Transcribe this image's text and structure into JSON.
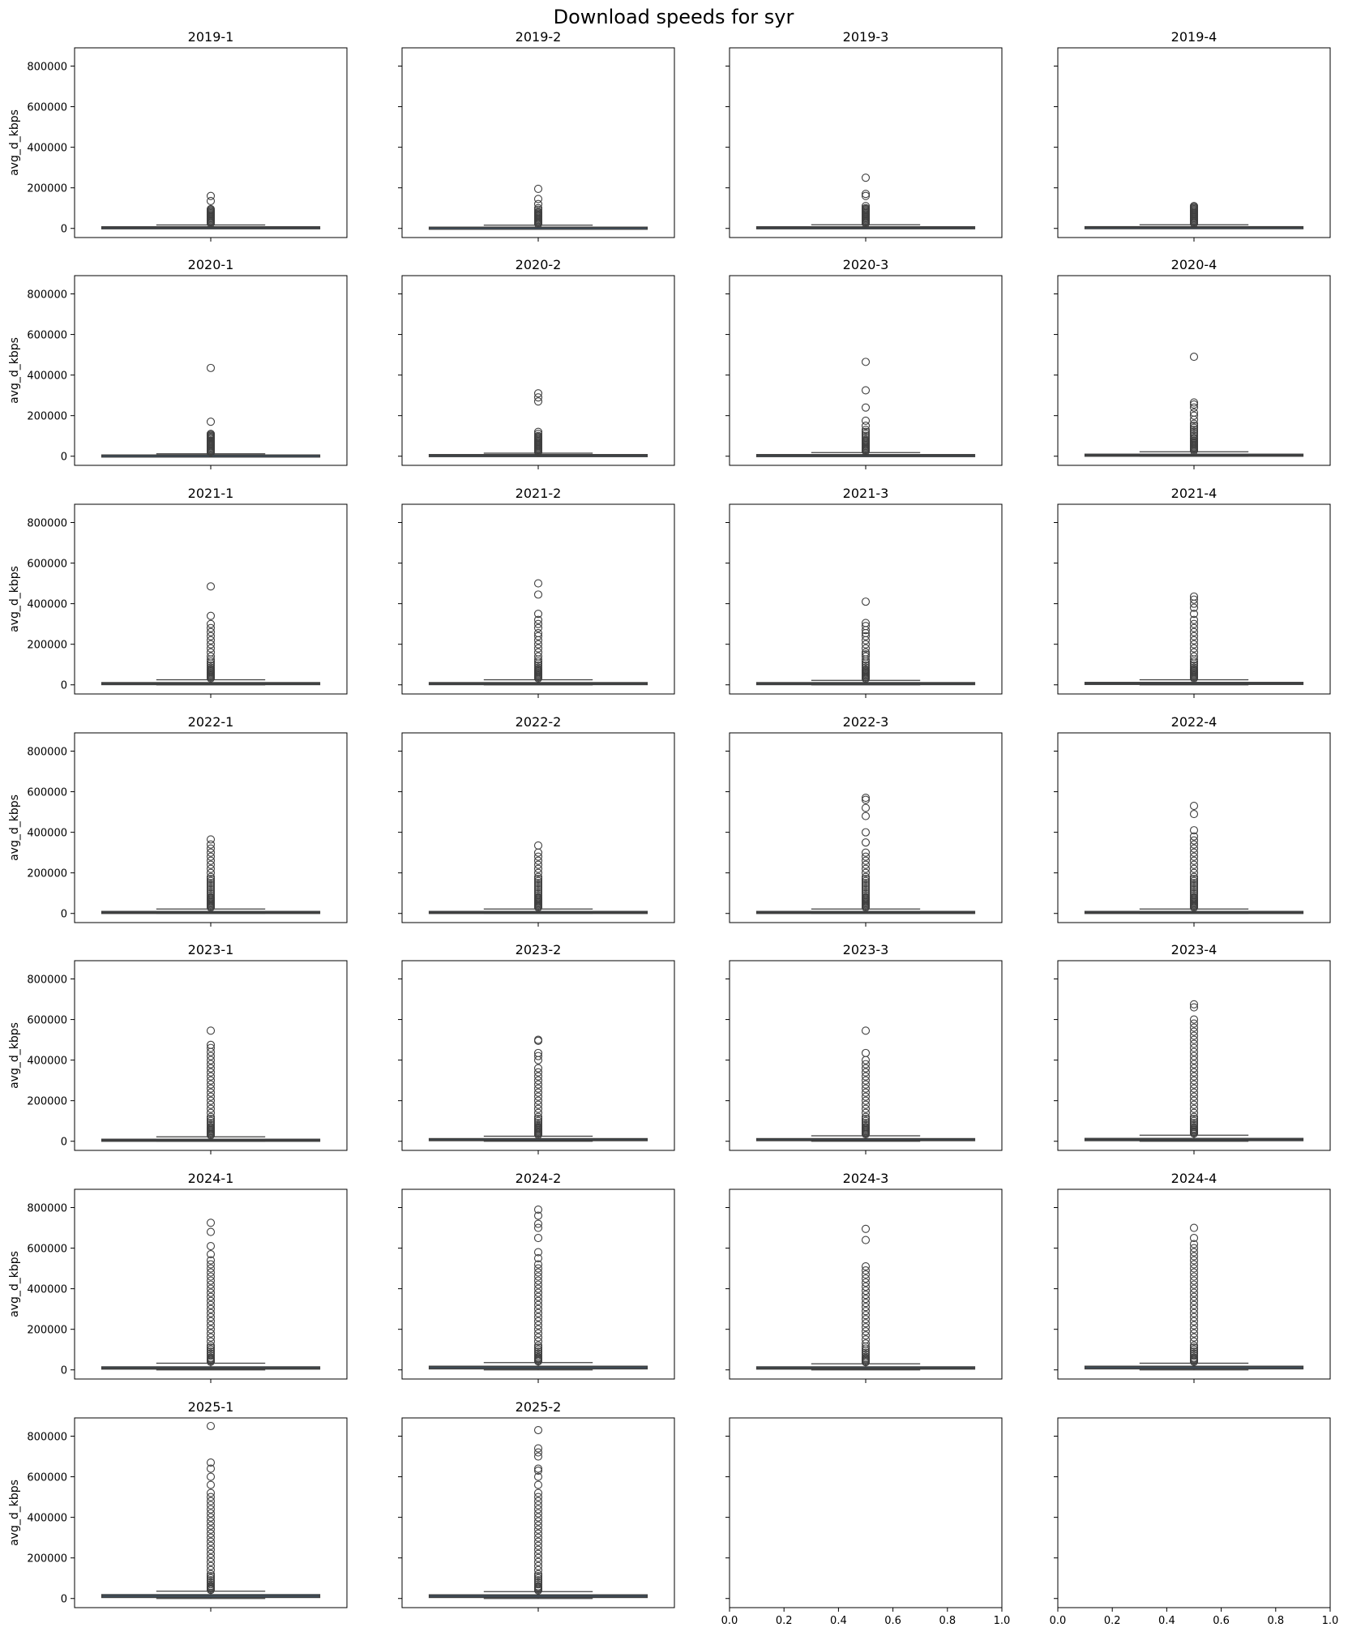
{
  "figure": {
    "title": "Download speeds for syr"
  },
  "chart_data": {
    "type": "box",
    "layout": {
      "rows": 7,
      "cols": 4
    },
    "title": "Download speeds for syr",
    "ylabel": "avg_d_kbps",
    "ylim": [
      -45000,
      890000
    ],
    "yticks": [
      0,
      200000,
      400000,
      600000,
      800000
    ],
    "grid": false,
    "box_color": "#3d6f98",
    "edge_color": "#3f3f3f",
    "panels": [
      {
        "title": "2019-1",
        "stats": {
          "min": 0,
          "q1": 1000,
          "median": 4000,
          "q3": 8000,
          "max": 17000
        },
        "outliers": [
          25000,
          30000,
          35000,
          40000,
          45000,
          50000,
          55000,
          60000,
          65000,
          70000,
          75000,
          80000,
          85000,
          90000,
          95000,
          135000,
          160000
        ]
      },
      {
        "title": "2019-2",
        "stats": {
          "min": 0,
          "q1": 800,
          "median": 3000,
          "q3": 6000,
          "max": 16000
        },
        "outliers": [
          22000,
          27000,
          32000,
          37000,
          42000,
          47000,
          52000,
          57000,
          62000,
          67000,
          72000,
          77000,
          82000,
          92000,
          100000,
          120000,
          145000,
          195000
        ]
      },
      {
        "title": "2019-3",
        "stats": {
          "min": 0,
          "q1": 1000,
          "median": 4000,
          "q3": 8000,
          "max": 18000
        },
        "outliers": [
          25000,
          30000,
          35000,
          40000,
          45000,
          50000,
          55000,
          60000,
          65000,
          70000,
          75000,
          80000,
          85000,
          90000,
          95000,
          100000,
          110000,
          160000,
          170000,
          250000
        ]
      },
      {
        "title": "2019-4",
        "stats": {
          "min": 0,
          "q1": 1500,
          "median": 4500,
          "q3": 8500,
          "max": 18000
        },
        "outliers": [
          25000,
          30000,
          35000,
          40000,
          45000,
          50000,
          55000,
          60000,
          65000,
          70000,
          75000,
          80000,
          85000,
          90000,
          95000,
          100000,
          105000,
          110000
        ]
      },
      {
        "title": "2020-1",
        "stats": {
          "min": 0,
          "q1": 1000,
          "median": 3000,
          "q3": 6000,
          "max": 12000
        },
        "outliers": [
          18000,
          23000,
          28000,
          33000,
          38000,
          43000,
          48000,
          53000,
          58000,
          63000,
          68000,
          73000,
          78000,
          85000,
          90000,
          95000,
          100000,
          105000,
          110000,
          170000,
          435000
        ]
      },
      {
        "title": "2020-2",
        "stats": {
          "min": 0,
          "q1": 1500,
          "median": 4000,
          "q3": 8000,
          "max": 15000
        },
        "outliers": [
          20000,
          25000,
          30000,
          35000,
          40000,
          45000,
          50000,
          55000,
          60000,
          65000,
          70000,
          75000,
          80000,
          85000,
          90000,
          95000,
          100000,
          110000,
          120000,
          270000,
          290000,
          310000
        ]
      },
      {
        "title": "2020-3",
        "stats": {
          "min": 0,
          "q1": 1500,
          "median": 4000,
          "q3": 8000,
          "max": 18000
        },
        "outliers": [
          25000,
          30000,
          35000,
          40000,
          45000,
          50000,
          55000,
          60000,
          65000,
          70000,
          75000,
          80000,
          90000,
          100000,
          110000,
          120000,
          130000,
          150000,
          175000,
          240000,
          325000,
          465000
        ]
      },
      {
        "title": "2020-4",
        "stats": {
          "min": 0,
          "q1": 2000,
          "median": 5000,
          "q3": 10000,
          "max": 22000
        },
        "outliers": [
          28000,
          33000,
          38000,
          43000,
          48000,
          53000,
          58000,
          63000,
          68000,
          73000,
          78000,
          85000,
          90000,
          100000,
          110000,
          120000,
          130000,
          140000,
          150000,
          160000,
          180000,
          200000,
          215000,
          240000,
          255000,
          265000,
          490000
        ]
      },
      {
        "title": "2021-1",
        "stats": {
          "min": 0,
          "q1": 2000,
          "median": 6000,
          "q3": 11000,
          "max": 25000
        },
        "outliers": [
          32000,
          37000,
          42000,
          47000,
          52000,
          57000,
          62000,
          67000,
          72000,
          77000,
          85000,
          95000,
          105000,
          115000,
          125000,
          140000,
          160000,
          180000,
          200000,
          220000,
          240000,
          260000,
          280000,
          300000,
          340000,
          485000
        ]
      },
      {
        "title": "2021-2",
        "stats": {
          "min": 0,
          "q1": 2000,
          "median": 6000,
          "q3": 11000,
          "max": 25000
        },
        "outliers": [
          32000,
          37000,
          42000,
          47000,
          52000,
          57000,
          62000,
          67000,
          72000,
          77000,
          85000,
          95000,
          105000,
          115000,
          125000,
          140000,
          160000,
          180000,
          200000,
          220000,
          240000,
          255000,
          280000,
          300000,
          320000,
          350000,
          445000,
          500000
        ]
      },
      {
        "title": "2021-3",
        "stats": {
          "min": 0,
          "q1": 2000,
          "median": 6000,
          "q3": 11000,
          "max": 22000
        },
        "outliers": [
          30000,
          35000,
          40000,
          45000,
          50000,
          55000,
          60000,
          65000,
          70000,
          75000,
          85000,
          95000,
          105000,
          115000,
          125000,
          140000,
          150000,
          160000,
          180000,
          200000,
          220000,
          240000,
          255000,
          270000,
          290000,
          305000,
          410000
        ]
      },
      {
        "title": "2021-4",
        "stats": {
          "min": 0,
          "q1": 2000,
          "median": 6000,
          "q3": 12000,
          "max": 25000
        },
        "outliers": [
          32000,
          37000,
          42000,
          47000,
          52000,
          57000,
          62000,
          67000,
          72000,
          77000,
          85000,
          95000,
          105000,
          115000,
          125000,
          140000,
          160000,
          180000,
          200000,
          220000,
          240000,
          260000,
          280000,
          300000,
          320000,
          350000,
          380000,
          400000,
          420000,
          435000
        ]
      },
      {
        "title": "2022-1",
        "stats": {
          "min": 0,
          "q1": 2000,
          "median": 5000,
          "q3": 10000,
          "max": 22000
        },
        "outliers": [
          30000,
          35000,
          40000,
          45000,
          50000,
          55000,
          60000,
          65000,
          70000,
          75000,
          80000,
          90000,
          100000,
          110000,
          120000,
          130000,
          140000,
          150000,
          160000,
          170000,
          180000,
          200000,
          220000,
          240000,
          260000,
          280000,
          300000,
          320000,
          340000,
          365000
        ]
      },
      {
        "title": "2022-2",
        "stats": {
          "min": 0,
          "q1": 2000,
          "median": 5000,
          "q3": 10000,
          "max": 22000
        },
        "outliers": [
          30000,
          35000,
          40000,
          45000,
          50000,
          55000,
          60000,
          65000,
          70000,
          75000,
          80000,
          90000,
          100000,
          110000,
          120000,
          130000,
          140000,
          150000,
          160000,
          170000,
          180000,
          200000,
          220000,
          240000,
          260000,
          280000,
          300000,
          335000
        ]
      },
      {
        "title": "2022-3",
        "stats": {
          "min": 0,
          "q1": 2000,
          "median": 5000,
          "q3": 10000,
          "max": 22000
        },
        "outliers": [
          30000,
          35000,
          40000,
          45000,
          50000,
          55000,
          60000,
          65000,
          70000,
          75000,
          80000,
          90000,
          100000,
          110000,
          120000,
          130000,
          140000,
          150000,
          160000,
          170000,
          180000,
          200000,
          220000,
          240000,
          260000,
          280000,
          300000,
          350000,
          400000,
          480000,
          520000,
          560000,
          570000
        ]
      },
      {
        "title": "2022-4",
        "stats": {
          "min": 0,
          "q1": 2000,
          "median": 5000,
          "q3": 10000,
          "max": 22000
        },
        "outliers": [
          30000,
          35000,
          40000,
          45000,
          50000,
          55000,
          60000,
          65000,
          70000,
          75000,
          80000,
          90000,
          100000,
          110000,
          120000,
          130000,
          140000,
          150000,
          160000,
          170000,
          180000,
          200000,
          220000,
          240000,
          260000,
          280000,
          300000,
          320000,
          340000,
          360000,
          380000,
          410000,
          490000,
          530000
        ]
      },
      {
        "title": "2023-1",
        "stats": {
          "min": 0,
          "q1": 2000,
          "median": 5000,
          "q3": 10000,
          "max": 22000
        },
        "outliers": [
          30000,
          35000,
          40000,
          45000,
          50000,
          55000,
          60000,
          65000,
          70000,
          80000,
          90000,
          100000,
          110000,
          120000,
          140000,
          160000,
          180000,
          200000,
          220000,
          240000,
          260000,
          280000,
          300000,
          320000,
          340000,
          360000,
          380000,
          400000,
          420000,
          440000,
          460000,
          475000,
          545000
        ]
      },
      {
        "title": "2023-2",
        "stats": {
          "min": 0,
          "q1": 3000,
          "median": 7000,
          "q3": 13000,
          "max": 25000
        },
        "outliers": [
          32000,
          37000,
          42000,
          47000,
          52000,
          57000,
          62000,
          67000,
          72000,
          80000,
          90000,
          100000,
          110000,
          120000,
          140000,
          160000,
          180000,
          200000,
          220000,
          240000,
          260000,
          280000,
          300000,
          320000,
          340000,
          360000,
          400000,
          420000,
          435000,
          495000,
          500000
        ]
      },
      {
        "title": "2023-3",
        "stats": {
          "min": 0,
          "q1": 3000,
          "median": 7000,
          "q3": 13000,
          "max": 27000
        },
        "outliers": [
          35000,
          40000,
          45000,
          50000,
          55000,
          60000,
          65000,
          70000,
          80000,
          90000,
          100000,
          110000,
          120000,
          140000,
          160000,
          180000,
          200000,
          220000,
          240000,
          260000,
          280000,
          300000,
          320000,
          340000,
          360000,
          380000,
          400000,
          435000,
          545000
        ]
      },
      {
        "title": "2023-4",
        "stats": {
          "min": 0,
          "q1": 3000,
          "median": 8000,
          "q3": 14000,
          "max": 30000
        },
        "outliers": [
          38000,
          43000,
          48000,
          53000,
          58000,
          63000,
          70000,
          80000,
          90000,
          100000,
          110000,
          120000,
          140000,
          160000,
          180000,
          200000,
          220000,
          240000,
          260000,
          280000,
          300000,
          320000,
          340000,
          360000,
          380000,
          400000,
          420000,
          440000,
          460000,
          480000,
          500000,
          520000,
          540000,
          560000,
          580000,
          600000,
          660000,
          675000
        ]
      },
      {
        "title": "2024-1",
        "stats": {
          "min": 0,
          "q1": 4000,
          "median": 9000,
          "q3": 15000,
          "max": 33000
        },
        "outliers": [
          40000,
          45000,
          50000,
          55000,
          60000,
          70000,
          80000,
          90000,
          100000,
          110000,
          120000,
          140000,
          160000,
          180000,
          200000,
          220000,
          240000,
          260000,
          280000,
          300000,
          320000,
          340000,
          360000,
          380000,
          400000,
          420000,
          440000,
          460000,
          480000,
          500000,
          520000,
          540000,
          570000,
          610000,
          680000,
          725000
        ]
      },
      {
        "title": "2024-2",
        "stats": {
          "min": 0,
          "q1": 5000,
          "median": 11000,
          "q3": 18000,
          "max": 36000
        },
        "outliers": [
          42000,
          47000,
          52000,
          57000,
          62000,
          70000,
          80000,
          90000,
          100000,
          110000,
          120000,
          140000,
          160000,
          180000,
          200000,
          220000,
          240000,
          260000,
          280000,
          300000,
          320000,
          340000,
          360000,
          380000,
          400000,
          420000,
          440000,
          460000,
          480000,
          500000,
          520000,
          550000,
          580000,
          650000,
          700000,
          720000,
          760000,
          790000
        ]
      },
      {
        "title": "2024-3",
        "stats": {
          "min": 0,
          "q1": 4000,
          "median": 9000,
          "q3": 15000,
          "max": 30000
        },
        "outliers": [
          38000,
          43000,
          48000,
          53000,
          58000,
          65000,
          75000,
          85000,
          95000,
          105000,
          115000,
          130000,
          150000,
          170000,
          190000,
          210000,
          230000,
          250000,
          270000,
          290000,
          310000,
          330000,
          350000,
          370000,
          390000,
          410000,
          430000,
          450000,
          470000,
          490000,
          510000,
          640000,
          695000
        ]
      },
      {
        "title": "2024-4",
        "stats": {
          "min": 0,
          "q1": 5000,
          "median": 11000,
          "q3": 18000,
          "max": 33000
        },
        "outliers": [
          40000,
          45000,
          50000,
          55000,
          60000,
          70000,
          80000,
          90000,
          100000,
          110000,
          120000,
          140000,
          160000,
          180000,
          200000,
          220000,
          240000,
          260000,
          280000,
          300000,
          320000,
          340000,
          360000,
          380000,
          400000,
          420000,
          440000,
          460000,
          480000,
          500000,
          520000,
          540000,
          560000,
          580000,
          600000,
          620000,
          650000,
          700000
        ]
      },
      {
        "title": "2025-1",
        "stats": {
          "min": 0,
          "q1": 5000,
          "median": 12000,
          "q3": 19000,
          "max": 36000
        },
        "outliers": [
          42000,
          47000,
          52000,
          57000,
          62000,
          70000,
          80000,
          90000,
          100000,
          110000,
          120000,
          140000,
          160000,
          180000,
          200000,
          220000,
          240000,
          260000,
          280000,
          300000,
          320000,
          340000,
          360000,
          380000,
          400000,
          420000,
          440000,
          460000,
          480000,
          500000,
          520000,
          560000,
          600000,
          640000,
          670000,
          850000
        ]
      },
      {
        "title": "2025-2",
        "stats": {
          "min": 0,
          "q1": 5000,
          "median": 11000,
          "q3": 18000,
          "max": 34000
        },
        "outliers": [
          40000,
          45000,
          50000,
          55000,
          60000,
          70000,
          80000,
          90000,
          100000,
          110000,
          120000,
          140000,
          160000,
          180000,
          200000,
          220000,
          240000,
          260000,
          280000,
          300000,
          320000,
          340000,
          360000,
          380000,
          400000,
          420000,
          440000,
          460000,
          480000,
          500000,
          520000,
          560000,
          600000,
          630000,
          640000,
          700000,
          720000,
          740000,
          830000
        ]
      },
      {
        "title": "",
        "empty": true,
        "xticks": [
          "0.0",
          "0.2",
          "0.4",
          "0.6",
          "0.8",
          "1.0"
        ]
      },
      {
        "title": "",
        "empty": true,
        "xticks": [
          "0.0",
          "0.2",
          "0.4",
          "0.6",
          "0.8",
          "1.0"
        ]
      }
    ]
  }
}
